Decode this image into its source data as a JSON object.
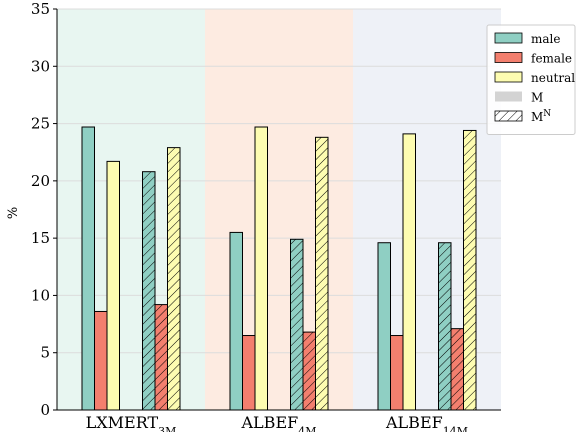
{
  "chart_data": {
    "type": "bar",
    "ylabel": "%",
    "ylim": [
      0,
      35
    ],
    "yticks": [
      0,
      5,
      10,
      15,
      20,
      25,
      30,
      35
    ],
    "grid": "horizontal",
    "legend_position": "top-right",
    "groups": [
      {
        "label": "LXMERT",
        "subscript": "3M",
        "background": "#e8f6f1"
      },
      {
        "label": "ALBEF",
        "subscript": "4M",
        "background": "#fdebe1"
      },
      {
        "label": "ALBEF",
        "subscript": "14M",
        "background": "#eef1f7"
      }
    ],
    "series": [
      {
        "key": "male",
        "name": "male",
        "color": "#8fcfc3"
      },
      {
        "key": "female",
        "name": "female",
        "color": "#f37f6e"
      },
      {
        "key": "neutral",
        "name": "neutral",
        "color": "#fdfcb1"
      }
    ],
    "variants": [
      {
        "key": "M",
        "name": "M",
        "sup": "",
        "hatched": false
      },
      {
        "key": "MN",
        "name": "M",
        "sup": "N",
        "hatched": true
      }
    ],
    "values": {
      "M": {
        "male": [
          24.7,
          15.5,
          14.6
        ],
        "female": [
          8.6,
          6.5,
          6.5
        ],
        "neutral": [
          21.7,
          24.7,
          24.1
        ]
      },
      "MN": {
        "male": [
          20.8,
          14.9,
          14.6
        ],
        "female": [
          9.2,
          6.8,
          7.1
        ],
        "neutral": [
          22.9,
          23.8,
          24.4
        ]
      }
    }
  }
}
